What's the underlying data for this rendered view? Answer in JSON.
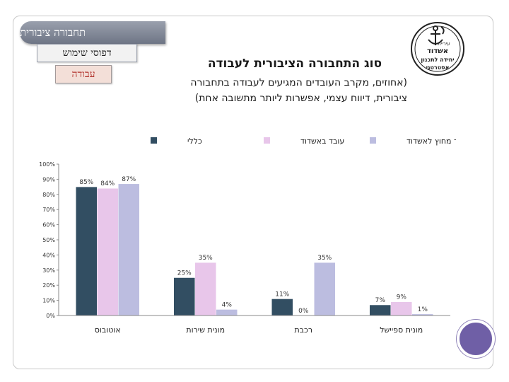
{
  "nav": {
    "section": "תחבורה ציבורית",
    "subsection": "דפוסי שימוש",
    "topic": "עבודה"
  },
  "header": {
    "title": "סוג התחבורה הציבורית לעבודה",
    "subtitle_line1": "(אחוזים, מקרב העובדים המגיעים לעבודה בתחבורה",
    "subtitle_line2": "ציבורית, דיווח עצמי, אפשרות ליותר מתשובה אחת)"
  },
  "logo": {
    "line1": "עיריית",
    "line2": "אשדוד",
    "line3": "יחידה לתכנון",
    "line4": "אסטרטגי"
  },
  "colors": {
    "series_all": "#324e62",
    "series_in_ashdod": "#e8c6ea",
    "series_outside_ashdod": "#bcbde0",
    "accent": "#6f5fa6"
  },
  "chart_data": {
    "type": "bar",
    "categories": [
      "אוטובוס",
      "מונית שירות",
      "רכבת",
      "מונית ספיישל"
    ],
    "series": [
      {
        "name": "כללי",
        "values": [
          85,
          25,
          11,
          7
        ],
        "labels": [
          "85%",
          "25%",
          "11%",
          "7%"
        ]
      },
      {
        "name": "עובד באשדוד",
        "values": [
          84,
          35,
          0,
          9
        ],
        "labels": [
          "84%",
          "35%",
          "0%",
          "9%"
        ]
      },
      {
        "name": "עובד מחוץ לאשדוד",
        "values": [
          87,
          4,
          35,
          1
        ],
        "labels": [
          "87%",
          "4%",
          "35%",
          "1%"
        ]
      }
    ],
    "yticks": [
      "0%",
      "10%",
      "20%",
      "30%",
      "40%",
      "50%",
      "60%",
      "70%",
      "80%",
      "90%",
      "100%"
    ],
    "ylim": [
      0,
      100
    ],
    "legend": "top",
    "grid": false
  }
}
